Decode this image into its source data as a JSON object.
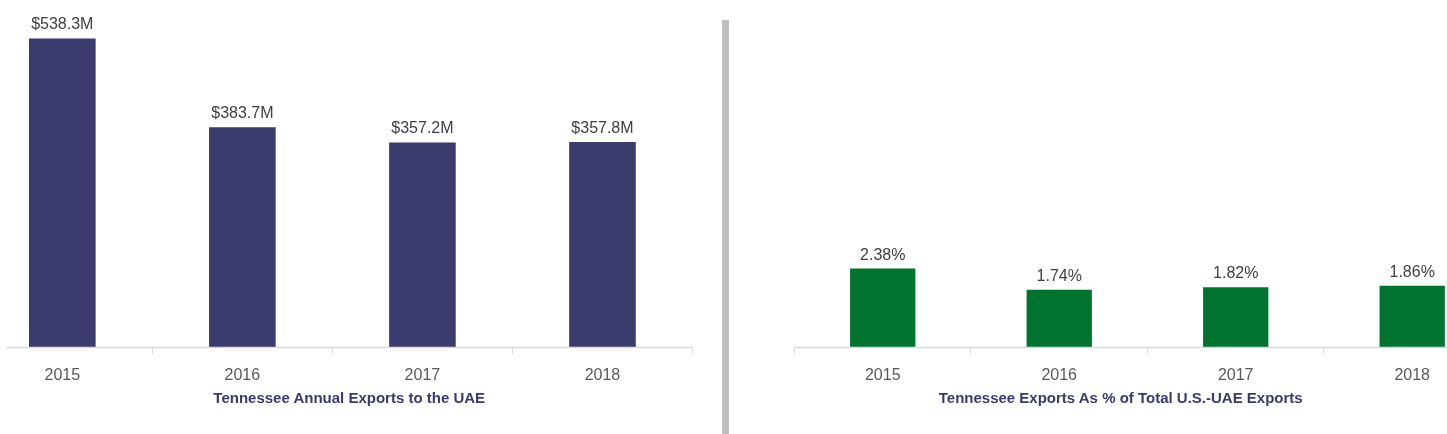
{
  "chart_data": [
    {
      "type": "bar",
      "xlabel": "Tennessee Annual Exports to the UAE",
      "categories": [
        "2015",
        "2016",
        "2017",
        "2018"
      ],
      "values": [
        538.3,
        383.7,
        357.2,
        357.8
      ],
      "value_labels": [
        "$538.3M",
        "$383.7M",
        "$357.2M",
        "$357.8M"
      ],
      "color": "#3c3b6e",
      "tick_labels": "x"
    },
    {
      "type": "bar",
      "xlabel": "Tennessee Exports As % of Total U.S.-UAE Exports",
      "categories": [
        "2015",
        "2016",
        "2017",
        "2018"
      ],
      "values": [
        2.38,
        1.74,
        1.82,
        1.86
      ],
      "value_labels": [
        "2.38%",
        "1.74%",
        "1.82%",
        "1.86%"
      ],
      "color": "#00742f",
      "tick_labels": "x"
    }
  ]
}
